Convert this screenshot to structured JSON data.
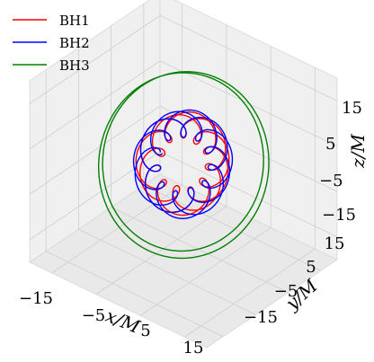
{
  "chart_data": {
    "type": "line",
    "projection": "3d",
    "grid": true,
    "legend_position": "top-left",
    "xlabel": "x/M",
    "ylabel": "y/M",
    "zlabel": "z/M",
    "x_ticks": [
      "−15",
      "−5",
      "5",
      "15"
    ],
    "y_ticks": [
      "15",
      "5",
      "−5",
      "−15"
    ],
    "z_ticks": [
      "15",
      "5",
      "−5",
      "−15"
    ],
    "x_tick_values": [
      -15,
      -5,
      5,
      15
    ],
    "y_tick_values": [
      15,
      5,
      -5,
      -15
    ],
    "z_tick_values": [
      15,
      5,
      -5,
      -15
    ],
    "xlim": [
      -20,
      20
    ],
    "ylim": [
      -20,
      20
    ],
    "zlim": [
      -20,
      20
    ],
    "series": [
      {
        "name": "BH1",
        "color": "#ff0000",
        "orbit_radius": 7,
        "epicycle_radius": 2.5,
        "loops": 14,
        "turns": 3
      },
      {
        "name": "BH2",
        "color": "#0000ff",
        "orbit_radius": 7.5,
        "epicycle_radius": 2.5,
        "loops": 14,
        "turns": 3
      },
      {
        "name": "BH3",
        "color": "#007f00",
        "orbit_radius": 17,
        "epicycle_radius": 0,
        "loops": 0,
        "turns": 3
      }
    ]
  }
}
